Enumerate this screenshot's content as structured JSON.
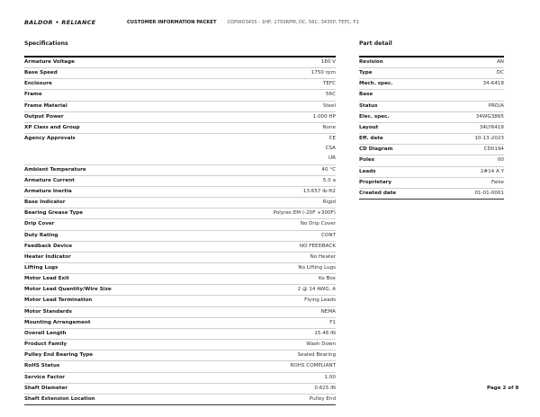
{
  "header": {
    "logo": "BALDOR • RELIANCE",
    "packet": "CUSTOMER INFORMATION PACKET",
    "description": "CDPWD3455 - 1HP, 1750RPM, DC, 56C, 3435P, TEFC, F1"
  },
  "specifications": {
    "title": "Specifications",
    "rows": [
      {
        "label": "Armature Voltage",
        "values": [
          "180 V"
        ]
      },
      {
        "label": "Base Speed",
        "values": [
          "1750 rpm"
        ]
      },
      {
        "label": "Enclosure",
        "values": [
          "TEFC"
        ]
      },
      {
        "label": "Frame",
        "values": [
          "56C"
        ]
      },
      {
        "label": "Frame Material",
        "values": [
          "Steel"
        ]
      },
      {
        "label": "Output Power",
        "values": [
          "1.000 HP"
        ]
      },
      {
        "label": "XP Class and Group",
        "values": [
          "None"
        ]
      },
      {
        "label": "Agency Approvals",
        "values": [
          "CE",
          "CSA",
          "UR"
        ]
      },
      {
        "label": "Ambient Temperature",
        "values": [
          "40 °C"
        ]
      },
      {
        "label": "Armature Current",
        "values": [
          "5.0 a"
        ]
      },
      {
        "label": "Armature Inertia",
        "values": [
          "13.657 lb-ft2"
        ]
      },
      {
        "label": "Base Indicator",
        "values": [
          "Rigid"
        ]
      },
      {
        "label": "Bearing Grease Type",
        "values": [
          "Polyrex EM (-20F +300F)"
        ]
      },
      {
        "label": "Drip Cover",
        "values": [
          "No Drip Cover"
        ]
      },
      {
        "label": "Duty Rating",
        "values": [
          "CONT"
        ]
      },
      {
        "label": "Feedback Device",
        "values": [
          "NO FEEDBACK"
        ]
      },
      {
        "label": "Heater Indicator",
        "values": [
          "No Heater"
        ]
      },
      {
        "label": "Lifting Lugs",
        "values": [
          "No Lifting Lugs"
        ]
      },
      {
        "label": "Motor Lead Exit",
        "values": [
          "Ko Box"
        ]
      },
      {
        "label": "Motor Lead Quantity/Wire Size",
        "values": [
          "2 @ 14 AWG, A"
        ]
      },
      {
        "label": "Motor Lead Termination",
        "values": [
          "Flying Leads"
        ]
      },
      {
        "label": "Motor Standards",
        "values": [
          "NEMA"
        ]
      },
      {
        "label": "Mounting Arrangement",
        "values": [
          "F1"
        ]
      },
      {
        "label": "Overall Length",
        "values": [
          "15.46 IN"
        ]
      },
      {
        "label": "Product Family",
        "values": [
          "Wash Down"
        ]
      },
      {
        "label": "Pulley End Bearing Type",
        "values": [
          "Sealed Bearing"
        ]
      },
      {
        "label": "RoHS Status",
        "values": [
          "ROHS COMPLIANT"
        ]
      },
      {
        "label": "Service Factor",
        "values": [
          "1.00"
        ]
      },
      {
        "label": "Shaft Diameter",
        "values": [
          "0.625 IN"
        ]
      },
      {
        "label": "Shaft Extension Location",
        "values": [
          "Pulley End"
        ]
      }
    ]
  },
  "part_detail": {
    "title": "Part detail",
    "rows": [
      {
        "label": "Revision",
        "values": [
          "AN"
        ]
      },
      {
        "label": "Type",
        "values": [
          "DC"
        ]
      },
      {
        "label": "Mech. spec.",
        "values": [
          "34-6418"
        ]
      },
      {
        "label": "Base",
        "values": [
          ""
        ]
      },
      {
        "label": "Status",
        "values": [
          "PRD/A"
        ]
      },
      {
        "label": "Elec. spec.",
        "values": [
          "34WG3865"
        ]
      },
      {
        "label": "Layout",
        "values": [
          "34LY6418"
        ]
      },
      {
        "label": "Eff. date",
        "values": [
          "10-13-2023"
        ]
      },
      {
        "label": "CD Diagram",
        "values": [
          "CD0194"
        ]
      },
      {
        "label": "Poles",
        "values": [
          "00"
        ]
      },
      {
        "label": "Leads",
        "values": [
          "2#14 A Y"
        ]
      },
      {
        "label": "Proprietary",
        "values": [
          "False"
        ]
      },
      {
        "label": "Created date",
        "values": [
          "01-01-0001"
        ]
      }
    ]
  },
  "footer": {
    "page": "Page 2 of 8"
  }
}
